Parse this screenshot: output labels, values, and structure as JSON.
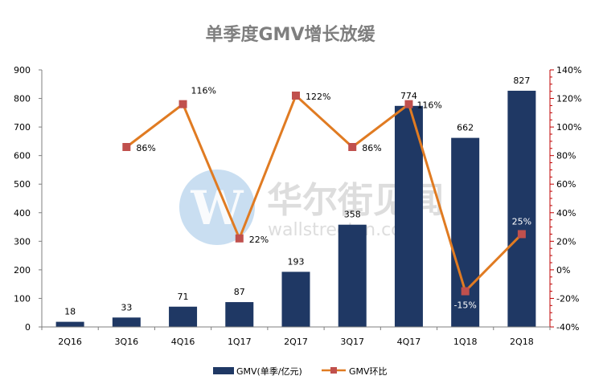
{
  "chart_data": {
    "type": "bar+line",
    "title": "单季度GMV增长放缓",
    "categories": [
      "2Q16",
      "3Q16",
      "4Q16",
      "1Q17",
      "2Q17",
      "3Q17",
      "4Q17",
      "1Q18",
      "2Q18"
    ],
    "series": [
      {
        "name": "GMV(单季/亿元)",
        "type": "bar",
        "axis": "left",
        "values": [
          18,
          33,
          71,
          87,
          193,
          358,
          774,
          662,
          827
        ],
        "labels": [
          "18",
          "33",
          "71",
          "87",
          "193",
          "358",
          "774",
          "662",
          "827"
        ]
      },
      {
        "name": "GMV环比",
        "type": "line",
        "axis": "right",
        "values": [
          null,
          86,
          116,
          22,
          122,
          86,
          116,
          -15,
          25
        ],
        "labels": [
          "",
          "86%",
          "116%",
          "22%",
          "122%",
          "86%",
          "116%",
          "-15%",
          "25%"
        ]
      }
    ],
    "y_left": {
      "min": 0,
      "max": 900,
      "ticks": [
        "0",
        "100",
        "200",
        "300",
        "400",
        "500",
        "600",
        "700",
        "800",
        "900"
      ]
    },
    "y_right": {
      "min": -40,
      "max": 140,
      "ticks": [
        "-40%",
        "-20%",
        "0%",
        "20%",
        "40%",
        "60%",
        "80%",
        "100%",
        "120%",
        "140%"
      ]
    },
    "grid": false,
    "legend": "bottom-center",
    "colors": {
      "bar": "#1f3864",
      "line": "#e07b22",
      "marker": "#c0504d",
      "axis_right": "#c00000"
    }
  },
  "watermark": {
    "logo_letter": "W",
    "text_cn": "华尔街见闻",
    "text_en": "wallstreetcn.com"
  }
}
